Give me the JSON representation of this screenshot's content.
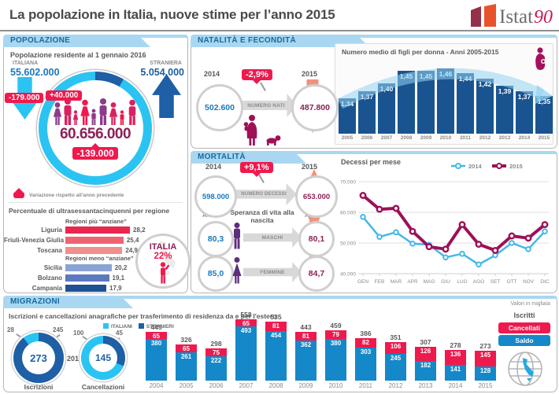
{
  "header": {
    "title": "La popolazione in Italia, nuove stime per l’anno 2015",
    "brand": "Istat",
    "brand_anniversary": "90"
  },
  "panels": {
    "popolazione": {
      "tab": "POPOLAZIONE",
      "subtitle": "Popolazione residente al 1 gennaio 2016",
      "italiana": {
        "label": "ITALIANA",
        "value": "55.602.000",
        "delta": "-179.000"
      },
      "straniera": {
        "label": "STRANIERA",
        "value": "5.054.000",
        "delta": "+40.000"
      },
      "totale": {
        "value": "60.656.000",
        "delta": "-139.000"
      },
      "legend_note": "Variazione rispetto all'anno precedente",
      "italia_badge": {
        "label": "ITALIA",
        "value": "22%"
      }
    },
    "natalita": {
      "tab": "NATALITÀ E FECONDITÀ",
      "year_left": "2014",
      "year_right": "2015",
      "value_left": "502.600",
      "value_right": "487.800",
      "delta": "-2,9%",
      "flow_label": "NUMERO NATI"
    },
    "mortalita": {
      "tab": "MORTALITÀ",
      "year_left": "2014",
      "year_right": "2015",
      "value_left": "598.000",
      "value_right": "653.000",
      "delta": "+9,1%",
      "flow_label": "NUMERO DECESSI",
      "life_expectancy_title": "Speranza di vita alla nascita",
      "anni_label": "ANNI",
      "maschi": {
        "label": "MASCHI",
        "from": "80,3",
        "to": "80,1"
      },
      "femmine": {
        "label": "FEMMINE",
        "from": "85,0",
        "to": "84,7"
      }
    },
    "migrazioni": {
      "tab": "MIGRAZIONI",
      "subtitle": "Iscrizioni e cancellazioni anagrafiche per trasferimento di residenza da e per l'estero",
      "note": "Valori in migliaia",
      "legend_italiani": "ITALIANI",
      "legend_stranieri": "STRANIERI",
      "year_label": "2015",
      "legend_right": {
        "iscritti": "Iscritti",
        "cancellati": "Cancellati",
        "saldo": "Saldo"
      }
    }
  },
  "colors": {
    "accent_crimson": "#ee1a4e",
    "cyan": "#2bc4f2",
    "dark_blue": "#1e5fa5",
    "value_blue": "#1a79bd",
    "dark_magenta": "#8c2156",
    "salmon": "#f4907f",
    "navy_bar": "#1a5490",
    "migration_blue": "#1588c9",
    "line_2014": "#45b8e8",
    "line_2015": "#9c1156",
    "tab_blue": "#a9d7f1"
  },
  "chart_data": [
    {
      "type": "bar",
      "panel": "popolazione",
      "title": "Percentuale di ultrasessantacinquenni per regione",
      "unit": "%",
      "xlim": [
        0,
        28.2
      ],
      "groups": [
        {
          "label": "Regioni più “anziane”",
          "colors": [
            "#e8274e",
            "#ee6472",
            "#f18f8c"
          ],
          "rows": [
            {
              "region": "Liguria",
              "value": 28.2
            },
            {
              "region": "Friuli-Venezia Giulia",
              "value": 25.4
            },
            {
              "region": "Toscana",
              "value": 24.9
            }
          ]
        },
        {
          "label": "Regioni meno “anziane”",
          "colors": [
            "#8ba3d3",
            "#5b79c0",
            "#1d5293"
          ],
          "rows": [
            {
              "region": "Sicilia",
              "value": 20.2
            },
            {
              "region": "Bolzano",
              "value": 19.1
            },
            {
              "region": "Campania",
              "value": 17.9
            }
          ]
        }
      ],
      "italia_value": 22
    },
    {
      "type": "bar",
      "panel": "natalita",
      "title": "Numero medio di figli per donna - Anni 2005-2015",
      "categories": [
        "2005",
        "2006",
        "2007",
        "2008",
        "2009",
        "2010",
        "2011",
        "2012",
        "2013",
        "2014",
        "2015"
      ],
      "values": [
        1.34,
        1.37,
        1.4,
        1.45,
        1.45,
        1.46,
        1.44,
        1.42,
        1.39,
        1.37,
        1.35
      ],
      "ylim": [
        1.2,
        1.5
      ],
      "bar_color": "#1a5490"
    },
    {
      "type": "line",
      "panel": "mortalita",
      "title": "Decessi per mese",
      "categories": [
        "GEN",
        "FEB",
        "MAR",
        "APR",
        "MAG",
        "GIU",
        "LUG",
        "AGO",
        "SET",
        "OTT",
        "NOV",
        "DIC"
      ],
      "series": [
        {
          "name": "2014",
          "color": "#45b8e8",
          "values": [
            58500,
            52000,
            53500,
            49800,
            49400,
            45300,
            46500,
            43000,
            46000,
            50000,
            48000,
            53800
          ]
        },
        {
          "name": "2015",
          "color": "#9c1156",
          "values": [
            65500,
            61000,
            61300,
            53800,
            48800,
            48000,
            56000,
            49600,
            47600,
            52300,
            51600,
            56000
          ]
        }
      ],
      "ylim": [
        40000,
        70000
      ],
      "yticks": [
        "70.000",
        "60.000",
        "50.000",
        "40.000"
      ],
      "grid": true,
      "legend_position": "top-right"
    },
    {
      "type": "pie",
      "panel": "migrazioni",
      "year": "2015",
      "segment_colors": {
        "ITALIANI": "#2bc4f2",
        "STRANIERI": "#1e5fa5"
      },
      "charts": [
        {
          "label": "Iscrizioni",
          "total": 273,
          "segments": [
            {
              "name": "ITALIANI",
              "value": 28
            },
            {
              "name": "STRANIERI",
              "value": 245
            }
          ]
        },
        {
          "label": "Cancellazioni",
          "total": 145,
          "segments": [
            {
              "name": "ITALIANI",
              "value": 100
            },
            {
              "name": "STRANIERI",
              "value": 45
            }
          ]
        }
      ]
    },
    {
      "type": "bar",
      "stacked": true,
      "panel": "migrazioni",
      "unit": "migliaia",
      "categories": [
        "2004",
        "2005",
        "2006",
        "2007",
        "2008",
        "2009",
        "2010",
        "2011",
        "2012",
        "2013",
        "2014",
        "2015"
      ],
      "totals_label": "Iscritti",
      "totals": [
        445,
        326,
        298,
        558,
        535,
        443,
        459,
        386,
        351,
        307,
        278,
        273
      ],
      "series": [
        {
          "name": "Cancellati",
          "color": "#ee1a4e",
          "values": [
            65,
            65,
            75,
            65,
            81,
            81,
            79,
            82,
            106,
            126,
            136,
            145
          ]
        },
        {
          "name": "Saldo",
          "color": "#1588c9",
          "values": [
            380,
            261,
            222,
            493,
            454,
            362,
            380,
            303,
            245,
            182,
            141,
            128
          ]
        }
      ]
    }
  ]
}
